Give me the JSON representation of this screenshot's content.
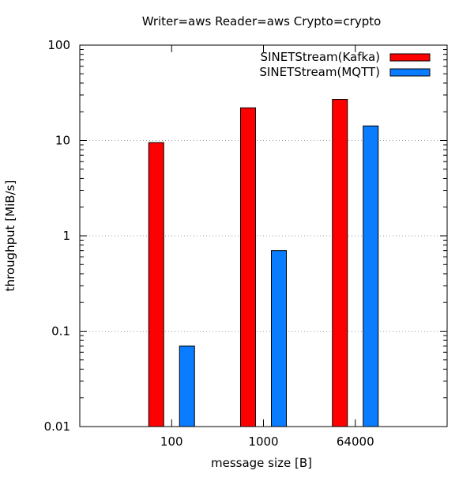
{
  "chart_data": {
    "type": "bar",
    "title": "Writer=aws Reader=aws Crypto=crypto",
    "xlabel": "message size [B]",
    "ylabel": "throughput [MiB/s]",
    "categories": [
      "100",
      "1000",
      "64000"
    ],
    "yscale": "log",
    "ylim": [
      0.01,
      100
    ],
    "yticks": [
      0.01,
      0.1,
      1,
      10,
      100
    ],
    "ytick_labels": [
      "0.01",
      "0.1",
      "1",
      "10",
      "100"
    ],
    "grid": "horizontal dotted",
    "legend_position": "top-right",
    "series": [
      {
        "name": "SINETStream(Kafka)",
        "color": "#ff0000",
        "values": [
          9.5,
          22,
          27
        ]
      },
      {
        "name": "SINETStream(MQTT)",
        "color": "#0a7cff",
        "values": [
          0.07,
          0.7,
          14.2
        ]
      }
    ]
  }
}
